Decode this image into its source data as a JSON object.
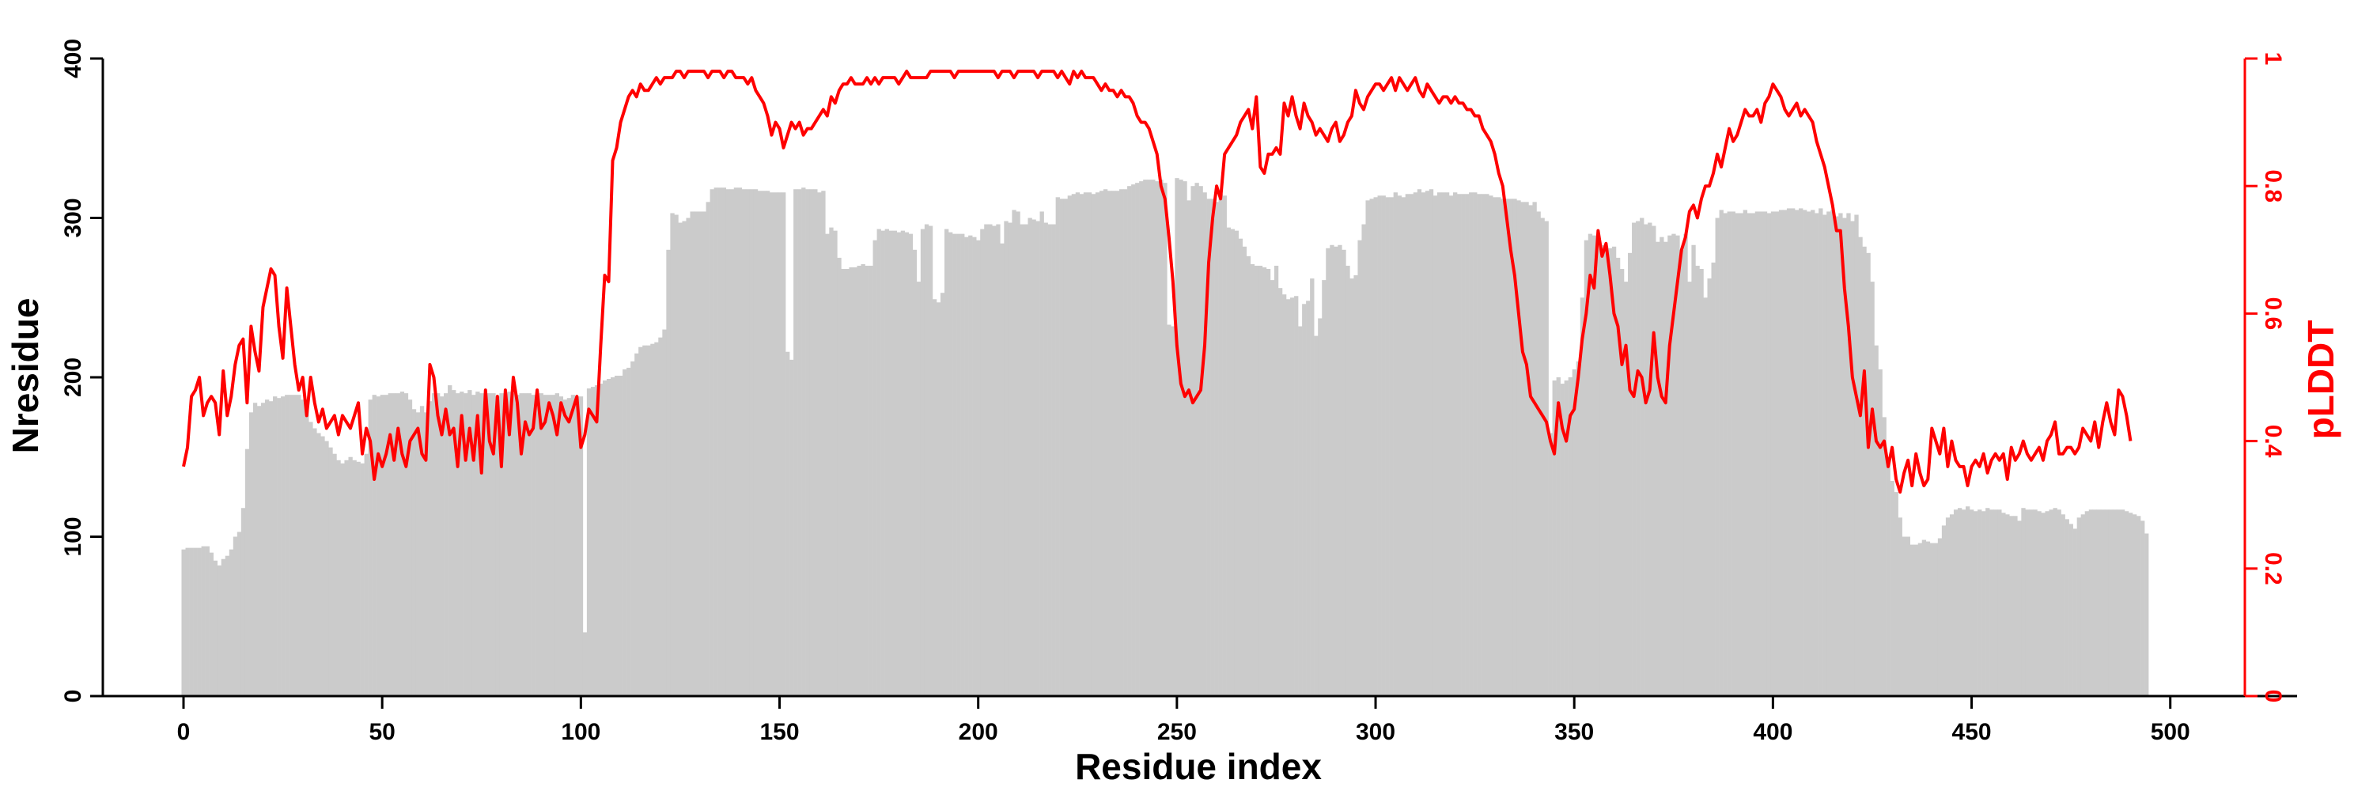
{
  "colors": {
    "bars": "#cbcbcb",
    "line": "#ff0000",
    "axis": "#000000",
    "right_axis": "#ff0000"
  },
  "chart_data": {
    "type": "bar",
    "title": "",
    "xlabel": "Residue index",
    "ylabel": "Nresidue",
    "y2label": "pLDDT",
    "xlim": [
      0,
      512
    ],
    "ylim": [
      0,
      400
    ],
    "y2lim": [
      0,
      1
    ],
    "xticks": [
      0,
      50,
      100,
      150,
      200,
      250,
      300,
      350,
      400,
      450,
      500
    ],
    "yticks": [
      0,
      100,
      200,
      300,
      400
    ],
    "y2ticks": [
      0,
      0.2,
      0.4,
      0.6,
      0.8,
      1
    ],
    "grid": false,
    "legend": "none",
    "series": [
      {
        "type": "bar",
        "axis": "left",
        "x_start": 0,
        "x_step": 1,
        "values": [
          92,
          93,
          93,
          93,
          93,
          94,
          94,
          90,
          85,
          82,
          86,
          88,
          92,
          100,
          103,
          118,
          155,
          178,
          184,
          182,
          184,
          186,
          185,
          188,
          187,
          188,
          189,
          189,
          189,
          189,
          186,
          183,
          172,
          168,
          165,
          163,
          160,
          156,
          152,
          148,
          146,
          148,
          150,
          148,
          147,
          146,
          152,
          186,
          189,
          188,
          189,
          189,
          190,
          190,
          190,
          191,
          190,
          186,
          180,
          178,
          182,
          178,
          185,
          190,
          190,
          188,
          190,
          195,
          192,
          190,
          191,
          190,
          192,
          189,
          191,
          190,
          190,
          190,
          190,
          188,
          190,
          190,
          191,
          190,
          189,
          190,
          190,
          190,
          189,
          188,
          190,
          189,
          189,
          189,
          190,
          188,
          186,
          187,
          189,
          188,
          188,
          40,
          193,
          194,
          195,
          196,
          198,
          199,
          200,
          201,
          201,
          205,
          206,
          210,
          215,
          219,
          220,
          220,
          221,
          222,
          225,
          230,
          280,
          303,
          302,
          297,
          298,
          300,
          304,
          304,
          304,
          304,
          310,
          318,
          319,
          319,
          319,
          318,
          318,
          319,
          319,
          318,
          318,
          318,
          318,
          317,
          317,
          317,
          316,
          316,
          316,
          316,
          216,
          211,
          318,
          318,
          319,
          318,
          318,
          318,
          316,
          317,
          290,
          294,
          292,
          275,
          268,
          268,
          269,
          269,
          270,
          271,
          270,
          270,
          286,
          293,
          292,
          293,
          292,
          292,
          291,
          292,
          291,
          290,
          280,
          260,
          293,
          296,
          295,
          249,
          247,
          253,
          293,
          291,
          290,
          290,
          290,
          288,
          289,
          288,
          286,
          293,
          296,
          296,
          295,
          296,
          284,
          298,
          297,
          305,
          304,
          296,
          296,
          300,
          299,
          298,
          304,
          297,
          296,
          296,
          313,
          312,
          312,
          314,
          315,
          316,
          315,
          316,
          316,
          315,
          316,
          317,
          318,
          317,
          317,
          317,
          318,
          318,
          320,
          321,
          322,
          323,
          324,
          324,
          324,
          323,
          324,
          322,
          233,
          232,
          325,
          324,
          323,
          311,
          320,
          322,
          320,
          316,
          312,
          312,
          310,
          315,
          314,
          294,
          293,
          292,
          287,
          282,
          276,
          271,
          270,
          270,
          269,
          268,
          261,
          270,
          256,
          252,
          249,
          250,
          251,
          232,
          246,
          248,
          262,
          226,
          237,
          261,
          281,
          283,
          282,
          283,
          280,
          270,
          262,
          264,
          286,
          296,
          311,
          312,
          313,
          314,
          314,
          313,
          313,
          316,
          314,
          313,
          315,
          315,
          316,
          318,
          316,
          317,
          318,
          314,
          316,
          316,
          316,
          314,
          316,
          315,
          315,
          315,
          316,
          316,
          315,
          315,
          315,
          314,
          313,
          313,
          312,
          312,
          312,
          312,
          311,
          310,
          310,
          308,
          310,
          304,
          300,
          298,
          165,
          198,
          200,
          196,
          198,
          200,
          205,
          210,
          250,
          286,
          290,
          289,
          283,
          283,
          282,
          281,
          282,
          275,
          268,
          260,
          278,
          297,
          298,
          300,
          296,
          297,
          295,
          285,
          288,
          285,
          289,
          290,
          289,
          280,
          290,
          260,
          283,
          270,
          268,
          250,
          262,
          272,
          300,
          305,
          303,
          304,
          304,
          303,
          303,
          305,
          303,
          303,
          304,
          304,
          304,
          303,
          304,
          304,
          305,
          305,
          306,
          306,
          305,
          306,
          305,
          304,
          305,
          303,
          306,
          302,
          304,
          305,
          301,
          303,
          300,
          303,
          298,
          302,
          288,
          282,
          278,
          260,
          220,
          205,
          175,
          150,
          135,
          128,
          112,
          100,
          100,
          95,
          95,
          96,
          98,
          97,
          96,
          96,
          99,
          107,
          112,
          114,
          117,
          118,
          117,
          119,
          117,
          116,
          117,
          116,
          118,
          117,
          117,
          117,
          115,
          114,
          113,
          113,
          110,
          118,
          117,
          117,
          117,
          116,
          115,
          116,
          117,
          118,
          117,
          114,
          111,
          108,
          105,
          112,
          114,
          116,
          117,
          117,
          117,
          117,
          117,
          117,
          117,
          117,
          117,
          116,
          115,
          114,
          113,
          110,
          102
        ]
      },
      {
        "type": "line",
        "axis": "right",
        "x_start": 0,
        "x_step": 1,
        "values": [
          0.36,
          0.39,
          0.47,
          0.48,
          0.5,
          0.44,
          0.46,
          0.47,
          0.46,
          0.41,
          0.51,
          0.44,
          0.47,
          0.52,
          0.55,
          0.56,
          0.46,
          0.58,
          0.54,
          0.51,
          0.61,
          0.64,
          0.67,
          0.66,
          0.58,
          0.53,
          0.64,
          0.58,
          0.52,
          0.48,
          0.5,
          0.44,
          0.5,
          0.46,
          0.43,
          0.45,
          0.42,
          0.43,
          0.44,
          0.41,
          0.44,
          0.43,
          0.42,
          0.44,
          0.46,
          0.38,
          0.42,
          0.4,
          0.34,
          0.38,
          0.36,
          0.38,
          0.41,
          0.37,
          0.42,
          0.38,
          0.36,
          0.4,
          0.41,
          0.42,
          0.38,
          0.37,
          0.52,
          0.5,
          0.44,
          0.41,
          0.45,
          0.41,
          0.42,
          0.36,
          0.44,
          0.37,
          0.42,
          0.37,
          0.44,
          0.35,
          0.48,
          0.4,
          0.38,
          0.47,
          0.36,
          0.48,
          0.41,
          0.5,
          0.46,
          0.38,
          0.43,
          0.41,
          0.42,
          0.48,
          0.42,
          0.43,
          0.46,
          0.44,
          0.41,
          0.46,
          0.44,
          0.43,
          0.45,
          0.47,
          0.39,
          0.41,
          0.45,
          0.44,
          0.43,
          0.55,
          0.66,
          0.65,
          0.84,
          0.86,
          0.9,
          0.92,
          0.94,
          0.95,
          0.94,
          0.96,
          0.95,
          0.95,
          0.96,
          0.97,
          0.96,
          0.97,
          0.97,
          0.97,
          0.98,
          0.98,
          0.97,
          0.98,
          0.98,
          0.98,
          0.98,
          0.98,
          0.97,
          0.98,
          0.98,
          0.98,
          0.97,
          0.98,
          0.98,
          0.97,
          0.97,
          0.97,
          0.96,
          0.97,
          0.95,
          0.94,
          0.93,
          0.91,
          0.88,
          0.9,
          0.89,
          0.86,
          0.88,
          0.9,
          0.89,
          0.9,
          0.88,
          0.89,
          0.89,
          0.9,
          0.91,
          0.92,
          0.91,
          0.94,
          0.93,
          0.95,
          0.96,
          0.96,
          0.97,
          0.96,
          0.96,
          0.96,
          0.97,
          0.96,
          0.97,
          0.96,
          0.97,
          0.97,
          0.97,
          0.97,
          0.96,
          0.97,
          0.98,
          0.97,
          0.97,
          0.97,
          0.97,
          0.97,
          0.98,
          0.98,
          0.98,
          0.98,
          0.98,
          0.98,
          0.97,
          0.98,
          0.98,
          0.98,
          0.98,
          0.98,
          0.98,
          0.98,
          0.98,
          0.98,
          0.98,
          0.97,
          0.98,
          0.98,
          0.98,
          0.97,
          0.98,
          0.98,
          0.98,
          0.98,
          0.98,
          0.97,
          0.98,
          0.98,
          0.98,
          0.98,
          0.97,
          0.98,
          0.97,
          0.96,
          0.98,
          0.97,
          0.98,
          0.97,
          0.97,
          0.97,
          0.96,
          0.95,
          0.96,
          0.95,
          0.95,
          0.94,
          0.95,
          0.94,
          0.94,
          0.93,
          0.91,
          0.9,
          0.9,
          0.89,
          0.87,
          0.85,
          0.8,
          0.78,
          0.72,
          0.65,
          0.55,
          0.49,
          0.47,
          0.48,
          0.46,
          0.47,
          0.48,
          0.55,
          0.68,
          0.75,
          0.8,
          0.78,
          0.85,
          0.86,
          0.87,
          0.88,
          0.9,
          0.91,
          0.92,
          0.89,
          0.94,
          0.83,
          0.82,
          0.85,
          0.85,
          0.86,
          0.85,
          0.93,
          0.91,
          0.94,
          0.91,
          0.89,
          0.93,
          0.91,
          0.9,
          0.88,
          0.89,
          0.88,
          0.87,
          0.89,
          0.9,
          0.87,
          0.88,
          0.9,
          0.91,
          0.95,
          0.93,
          0.92,
          0.94,
          0.95,
          0.96,
          0.96,
          0.95,
          0.96,
          0.97,
          0.95,
          0.97,
          0.96,
          0.95,
          0.96,
          0.97,
          0.95,
          0.94,
          0.96,
          0.95,
          0.94,
          0.93,
          0.94,
          0.94,
          0.93,
          0.94,
          0.93,
          0.93,
          0.92,
          0.92,
          0.91,
          0.91,
          0.89,
          0.88,
          0.87,
          0.85,
          0.82,
          0.8,
          0.75,
          0.7,
          0.66,
          0.6,
          0.54,
          0.52,
          0.47,
          0.46,
          0.45,
          0.44,
          0.43,
          0.4,
          0.38,
          0.46,
          0.42,
          0.4,
          0.44,
          0.45,
          0.5,
          0.56,
          0.6,
          0.66,
          0.64,
          0.73,
          0.69,
          0.71,
          0.66,
          0.6,
          0.58,
          0.52,
          0.55,
          0.48,
          0.47,
          0.51,
          0.5,
          0.46,
          0.48,
          0.57,
          0.5,
          0.47,
          0.46,
          0.55,
          0.6,
          0.65,
          0.7,
          0.72,
          0.76,
          0.77,
          0.75,
          0.78,
          0.8,
          0.8,
          0.82,
          0.85,
          0.83,
          0.86,
          0.89,
          0.87,
          0.88,
          0.9,
          0.92,
          0.91,
          0.91,
          0.92,
          0.9,
          0.93,
          0.94,
          0.96,
          0.95,
          0.94,
          0.92,
          0.91,
          0.92,
          0.93,
          0.91,
          0.92,
          0.91,
          0.9,
          0.87,
          0.85,
          0.83,
          0.8,
          0.77,
          0.73,
          0.73,
          0.64,
          0.58,
          0.5,
          0.47,
          0.44,
          0.51,
          0.39,
          0.45,
          0.4,
          0.39,
          0.4,
          0.36,
          0.39,
          0.34,
          0.32,
          0.35,
          0.37,
          0.33,
          0.38,
          0.35,
          0.33,
          0.34,
          0.42,
          0.4,
          0.38,
          0.42,
          0.36,
          0.4,
          0.37,
          0.36,
          0.36,
          0.33,
          0.36,
          0.37,
          0.36,
          0.38,
          0.35,
          0.37,
          0.38,
          0.37,
          0.38,
          0.34,
          0.39,
          0.37,
          0.38,
          0.4,
          0.38,
          0.37,
          0.38,
          0.39,
          0.37,
          0.4,
          0.41,
          0.43,
          0.38,
          0.38,
          0.39,
          0.39,
          0.38,
          0.39,
          0.42,
          0.41,
          0.4,
          0.43,
          0.39,
          0.43,
          0.46,
          0.43,
          0.41,
          0.48,
          0.47,
          0.44,
          0.4
        ]
      }
    ]
  }
}
